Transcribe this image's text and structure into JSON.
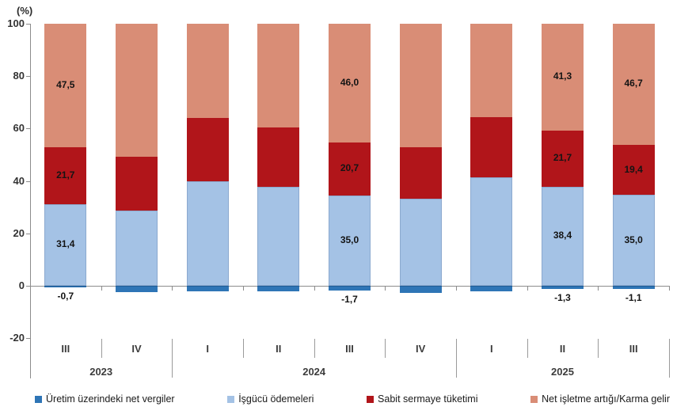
{
  "percent_label": "(%)",
  "colors": {
    "axis": "#8c8c8c",
    "separator": "#9a9a9a",
    "background": "#ffffff",
    "bar_label_text": "#141414"
  },
  "chart_data": {
    "type": "bar",
    "subtype": "stacked-percent",
    "title": "",
    "ylabel": "(%)",
    "ylim": [
      -20,
      100
    ],
    "yticks": [
      100,
      80,
      60,
      40,
      20,
      0,
      -20
    ],
    "grid": false,
    "legend_position": "bottom",
    "categories": [
      "III",
      "IV",
      "I",
      "II",
      "III",
      "IV",
      "I",
      "II",
      "III"
    ],
    "groups": [
      {
        "year": "2023",
        "count": 2
      },
      {
        "year": "2024",
        "count": 4
      },
      {
        "year": "2025",
        "count": 3
      }
    ],
    "series": [
      {
        "name": "Üretim üzerindeki net vergiler",
        "color": "#2E75B6",
        "values": [
          -0.7,
          -2.3,
          -2.1,
          -2.0,
          -1.7,
          -2.8,
          -2.1,
          -1.3,
          -1.1
        ],
        "labels": [
          "-0,7",
          null,
          null,
          null,
          "-1,7",
          null,
          null,
          "-1,3",
          "-1,1"
        ]
      },
      {
        "name": "İşgücü ödemeleri",
        "color": "#A4C2E5",
        "values": [
          31.4,
          29.4,
          40.7,
          38.4,
          35.0,
          34.2,
          42.4,
          38.4,
          35.0
        ],
        "labels": [
          "31,4",
          null,
          null,
          null,
          "35,0",
          null,
          null,
          "38,4",
          "35,0"
        ]
      },
      {
        "name": "Sabit sermaye tüketimi",
        "color": "#B1151A",
        "values": [
          21.7,
          20.9,
          24.6,
          23.2,
          20.7,
          20.3,
          23.3,
          21.7,
          19.4
        ],
        "labels": [
          "21,7",
          null,
          null,
          null,
          "20,7",
          null,
          null,
          "21,7",
          "19,4"
        ]
      },
      {
        "name": "Net işletme artığı/Karma gelir",
        "color": "#D98D76",
        "values": [
          47.5,
          52.0,
          36.8,
          40.4,
          46.0,
          48.3,
          36.4,
          41.3,
          46.7
        ],
        "labels": [
          "47,5",
          null,
          null,
          null,
          "46,0",
          null,
          null,
          "41,3",
          "46,7"
        ]
      }
    ]
  }
}
